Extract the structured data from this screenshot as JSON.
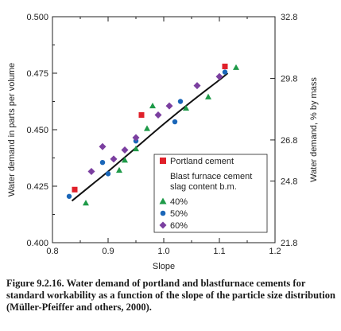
{
  "chart_data": {
    "type": "scatter",
    "xlabel": "Slope",
    "ylabel": "Water demand in parts per volume",
    "y2label": "Water demand, % by mass",
    "xlim": [
      0.8,
      1.2
    ],
    "ylim": [
      0.4,
      0.5
    ],
    "y2lim": [
      21.8,
      32.8
    ],
    "x_ticks": [
      "0.8",
      "0.9",
      "1.0",
      "1.1",
      "1.2"
    ],
    "y_ticks": [
      "0.400",
      "0.425",
      "0.450",
      "0.475",
      "0.500"
    ],
    "y2_ticks": [
      "21.8",
      "24.8",
      "26.8",
      "29.8",
      "32.8"
    ],
    "grid": false,
    "legend_position": "bottom-right",
    "legend_group_title": [
      "Blast furnace cement",
      "slag content b.m."
    ],
    "series": [
      {
        "name": "Portland cement",
        "marker": "square",
        "color": "#e0202a",
        "points": [
          [
            0.84,
            0.4235
          ],
          [
            0.96,
            0.4565
          ],
          [
            1.11,
            0.478
          ]
        ]
      },
      {
        "name": "40%",
        "marker": "triangle",
        "color": "#1e9a48",
        "points": [
          [
            0.86,
            0.4175
          ],
          [
            0.92,
            0.432
          ],
          [
            0.93,
            0.4365
          ],
          [
            0.95,
            0.4415
          ],
          [
            0.97,
            0.4505
          ],
          [
            0.98,
            0.4605
          ],
          [
            1.04,
            0.4595
          ],
          [
            1.08,
            0.4645
          ],
          [
            1.13,
            0.4775
          ]
        ]
      },
      {
        "name": "50%",
        "marker": "circle",
        "color": "#1a66b8",
        "points": [
          [
            0.83,
            0.4205
          ],
          [
            0.89,
            0.4355
          ],
          [
            0.9,
            0.4305
          ],
          [
            0.95,
            0.445
          ],
          [
            1.02,
            0.4535
          ],
          [
            1.03,
            0.4625
          ],
          [
            1.11,
            0.4755
          ]
        ]
      },
      {
        "name": "60%",
        "marker": "diamond",
        "color": "#7b3fa0",
        "points": [
          [
            0.87,
            0.4315
          ],
          [
            0.89,
            0.4425
          ],
          [
            0.91,
            0.437
          ],
          [
            0.93,
            0.441
          ],
          [
            0.95,
            0.4465
          ],
          [
            0.99,
            0.4565
          ],
          [
            1.01,
            0.4605
          ],
          [
            1.06,
            0.4695
          ],
          [
            1.1,
            0.4735
          ]
        ]
      }
    ],
    "fit_curve": {
      "color": "#111111",
      "points": [
        [
          0.835,
          0.4185
        ],
        [
          0.87,
          0.4255
        ],
        [
          0.9,
          0.4315
        ],
        [
          0.95,
          0.442
        ],
        [
          1.0,
          0.4525
        ],
        [
          1.05,
          0.4625
        ],
        [
          1.1,
          0.472
        ],
        [
          1.115,
          0.475
        ]
      ]
    }
  },
  "caption": "Figure 9.2.16. Water demand of portland and blastfurnace cements for standard workability as a function of the slope of the particle size distribution (Müller-Pfeiffer and others, 2000)."
}
